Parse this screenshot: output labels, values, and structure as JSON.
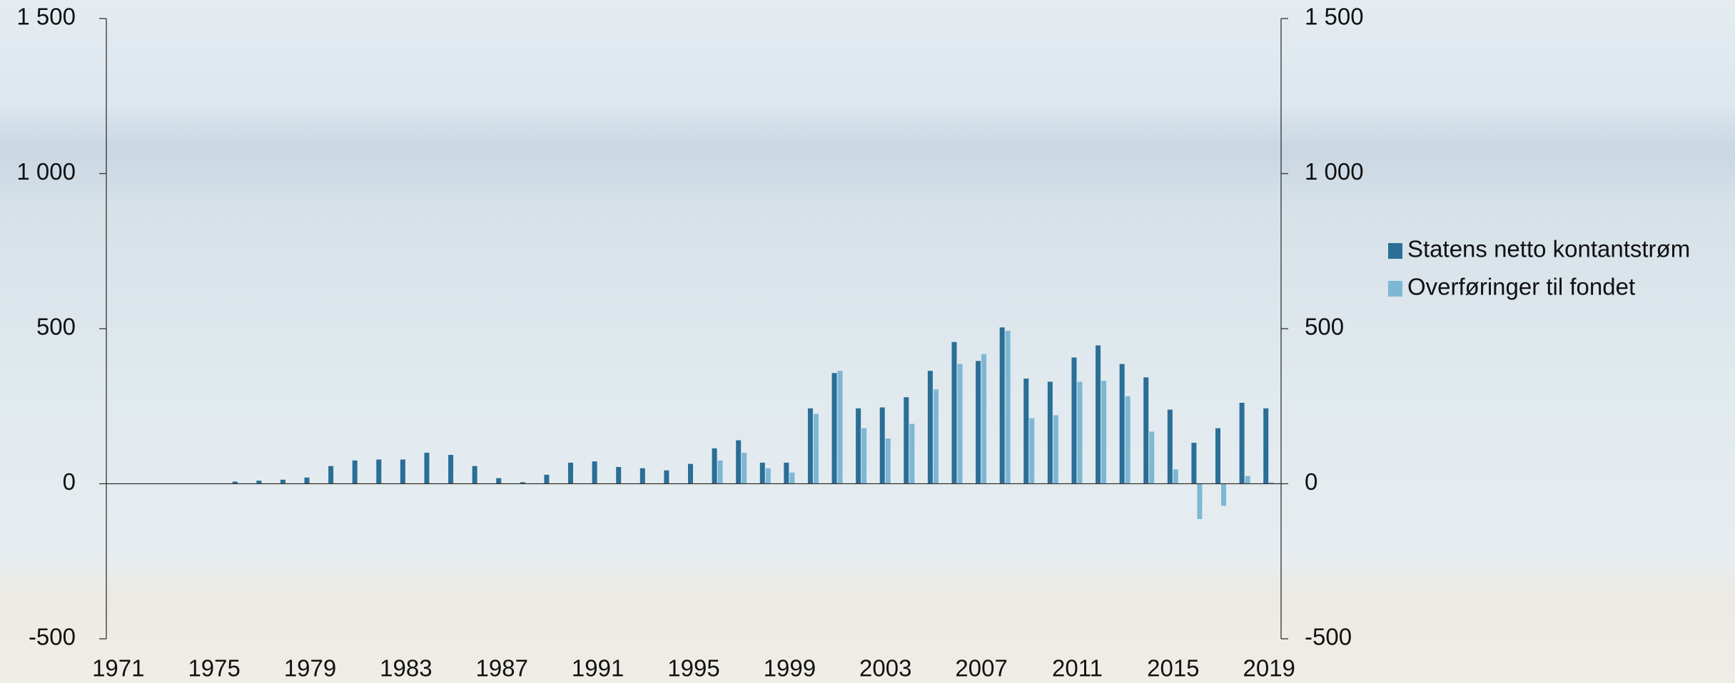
{
  "chart_data": {
    "type": "bar",
    "categories": [
      "1971",
      null,
      null,
      null,
      "1975",
      null,
      null,
      null,
      "1979",
      null,
      null,
      null,
      "1983",
      null,
      null,
      null,
      "1987",
      null,
      null,
      null,
      "1991",
      null,
      null,
      null,
      "1995",
      null,
      null,
      null,
      "1999",
      null,
      null,
      null,
      "2003",
      null,
      null,
      null,
      "2007",
      null,
      null,
      null,
      "2011",
      null,
      null,
      null,
      "2015",
      null,
      null,
      null,
      "2019"
    ],
    "series": [
      {
        "name": "Statens netto kontantstrøm",
        "color": "#2b6e96",
        "values": [
          0,
          0,
          0,
          0,
          0,
          7,
          10,
          13,
          20,
          57,
          75,
          78,
          78,
          100,
          93,
          57,
          18,
          5,
          29,
          68,
          72,
          54,
          50,
          43,
          64,
          114,
          140,
          68,
          68,
          243,
          357,
          243,
          246,
          279,
          364,
          457,
          396,
          504,
          339,
          329,
          407,
          446,
          386,
          343,
          239,
          132,
          179,
          261,
          243
        ]
      },
      {
        "name": "Overføringer til fondet",
        "color": "#7db7d3",
        "values": [
          0,
          0,
          0,
          0,
          0,
          0,
          0,
          0,
          0,
          0,
          0,
          0,
          0,
          0,
          0,
          0,
          0,
          0,
          0,
          0,
          0,
          0,
          0,
          0,
          0,
          75,
          100,
          50,
          36,
          225,
          364,
          179,
          146,
          193,
          304,
          386,
          418,
          493,
          211,
          221,
          329,
          332,
          282,
          168,
          46,
          -114,
          -71,
          25,
          4
        ]
      }
    ],
    "ylim": [
      -500,
      1500
    ],
    "yticks": [
      {
        "value": -500,
        "label": "-500"
      },
      0,
      500,
      {
        "value": 1000,
        "label": "1 000"
      },
      {
        "value": 1500,
        "label": "1 500"
      }
    ],
    "y2lim": [
      -500,
      1500
    ],
    "y2ticks": [
      {
        "value": -500,
        "label": "-500"
      },
      0,
      500,
      {
        "value": 1000,
        "label": "1 000"
      },
      {
        "value": 1500,
        "label": "1 500"
      }
    ],
    "legend": "right"
  }
}
